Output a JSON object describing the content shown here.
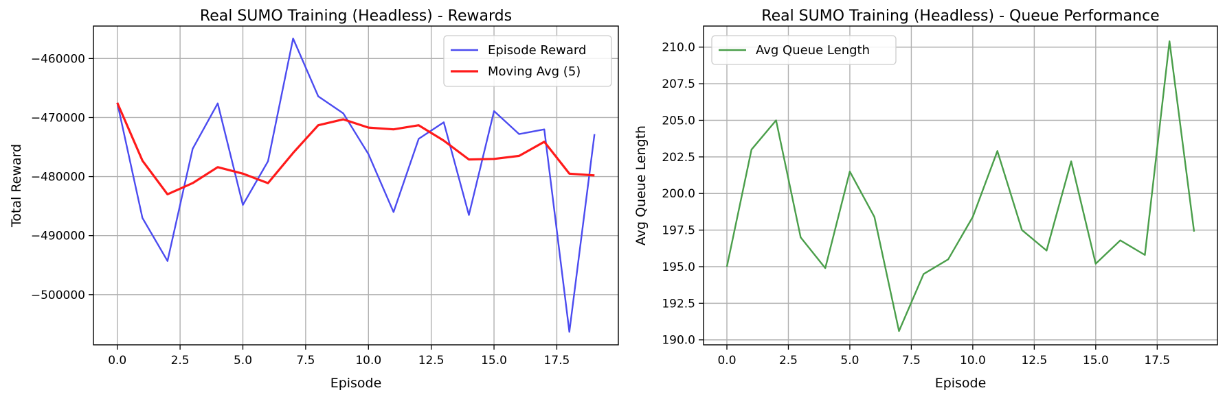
{
  "figure_width": 1783,
  "figure_height": 582,
  "chart_data": [
    {
      "type": "line",
      "title": "Real SUMO Training (Headless) - Rewards",
      "xlabel": "Episode",
      "ylabel": "Total Reward",
      "xlim": [
        -0.95,
        19.95
      ],
      "ylim": [
        -508500,
        -454500
      ],
      "xticks": [
        0.0,
        2.5,
        5.0,
        7.5,
        10.0,
        12.5,
        15.0,
        17.5
      ],
      "xtick_labels": [
        "0.0",
        "2.5",
        "5.0",
        "7.5",
        "10.0",
        "12.5",
        "15.0",
        "17.5"
      ],
      "yticks": [
        -500000,
        -490000,
        -480000,
        -470000,
        -460000
      ],
      "ytick_labels": [
        "−500000",
        "−490000",
        "−480000",
        "−470000",
        "−460000"
      ],
      "grid": true,
      "legend_position": "top-right",
      "series": [
        {
          "name": "Episode Reward",
          "color": "#4b4bf0",
          "x": [
            0,
            1,
            2,
            3,
            4,
            5,
            6,
            7,
            8,
            9,
            10,
            11,
            12,
            13,
            14,
            15,
            16,
            17,
            18,
            19
          ],
          "y": [
            -467500,
            -487000,
            -494300,
            -475300,
            -467600,
            -484800,
            -477400,
            -456600,
            -466400,
            -469300,
            -476200,
            -486000,
            -473600,
            -470800,
            -486500,
            -468900,
            -472800,
            -472000,
            -506300,
            -472800
          ]
        },
        {
          "name": "Moving Avg (5)",
          "color": "#ff1a1a",
          "x": [
            0,
            1,
            2,
            3,
            4,
            5,
            6,
            7,
            8,
            9,
            10,
            11,
            12,
            13,
            14,
            15,
            16,
            17,
            18,
            19
          ],
          "y": [
            -467500,
            -477300,
            -483000,
            -481100,
            -478400,
            -479500,
            -481100,
            -476000,
            -471300,
            -470300,
            -471700,
            -472000,
            -471300,
            -473900,
            -477100,
            -477000,
            -476500,
            -474100,
            -479500,
            -479800
          ]
        }
      ]
    },
    {
      "type": "line",
      "title": "Real SUMO Training (Headless) - Queue Performance",
      "xlabel": "Episode",
      "ylabel": "Avg Queue Length",
      "xlim": [
        -0.95,
        19.95
      ],
      "ylim": [
        189.66,
        211.44
      ],
      "xticks": [
        0.0,
        2.5,
        5.0,
        7.5,
        10.0,
        12.5,
        15.0,
        17.5
      ],
      "xtick_labels": [
        "0.0",
        "2.5",
        "5.0",
        "7.5",
        "10.0",
        "12.5",
        "15.0",
        "17.5"
      ],
      "yticks": [
        190.0,
        192.5,
        195.0,
        197.5,
        200.0,
        202.5,
        205.0,
        207.5,
        210.0
      ],
      "ytick_labels": [
        "190.0",
        "192.5",
        "195.0",
        "197.5",
        "200.0",
        "202.5",
        "205.0",
        "207.5",
        "210.0"
      ],
      "grid": true,
      "legend_position": "top-left",
      "series": [
        {
          "name": "Avg Queue Length",
          "color": "#4a9e4a",
          "x": [
            0,
            1,
            2,
            3,
            4,
            5,
            6,
            7,
            8,
            9,
            10,
            11,
            12,
            13,
            14,
            15,
            16,
            17,
            18,
            19
          ],
          "y": [
            195.0,
            203.0,
            205.0,
            197.0,
            194.9,
            201.5,
            198.4,
            190.6,
            194.5,
            195.5,
            198.4,
            202.9,
            197.5,
            196.1,
            202.2,
            195.2,
            196.8,
            195.8,
            210.4,
            197.4
          ]
        }
      ]
    }
  ]
}
